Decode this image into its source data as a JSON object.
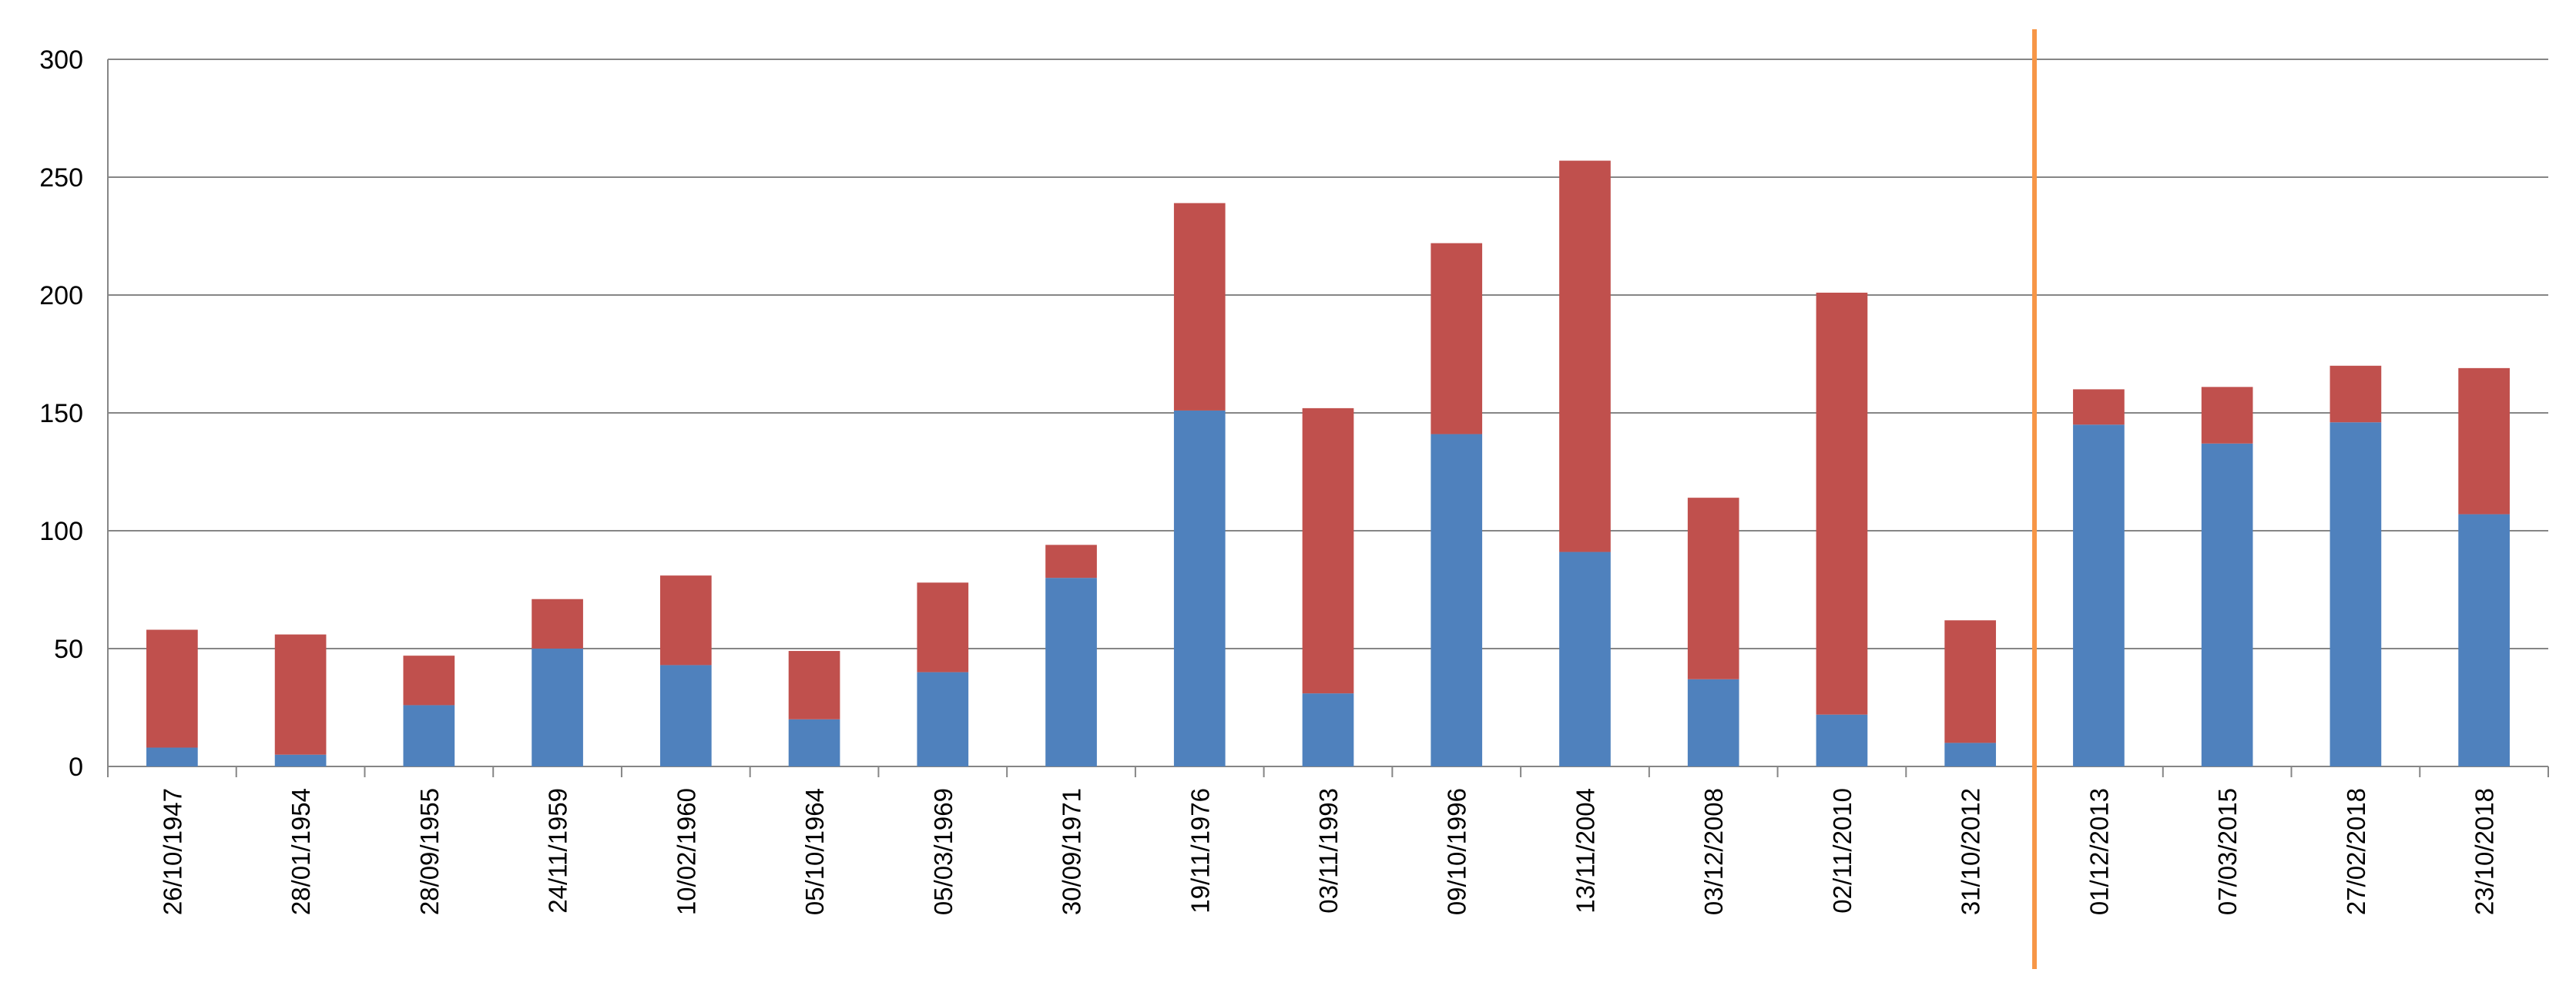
{
  "chart_data": {
    "type": "bar",
    "stacked": true,
    "title": "",
    "xlabel": "",
    "ylabel": "",
    "ylim": [
      0,
      300
    ],
    "yticks": [
      0,
      50,
      100,
      150,
      200,
      250,
      300
    ],
    "grid": true,
    "legend": "none",
    "categories": [
      "26/10/1947",
      "28/01/1954",
      "28/09/1955",
      "24/11/1959",
      "10/02/1960",
      "05/10/1964",
      "05/03/1969",
      "30/09/1971",
      "19/11/1976",
      "03/11/1993",
      "09/10/1996",
      "13/11/2004",
      "03/12/2008",
      "02/11/2010",
      "31/10/2012",
      "01/12/2013",
      "07/03/2015",
      "27/02/2018",
      "23/10/2018"
    ],
    "series": [
      {
        "color": "#4F81BD",
        "values": [
          8,
          5,
          26,
          50,
          43,
          20,
          40,
          80,
          151,
          31,
          141,
          91,
          37,
          22,
          10,
          145,
          137,
          146,
          107
        ]
      },
      {
        "color": "#C0504D",
        "values": [
          50,
          51,
          21,
          21,
          38,
          29,
          38,
          14,
          88,
          121,
          81,
          166,
          77,
          179,
          52,
          15,
          24,
          24,
          62
        ]
      }
    ],
    "annotations": [
      {
        "type": "vertical-line",
        "between": [
          "31/10/2012",
          "01/12/2013"
        ],
        "color": "#F79646"
      }
    ]
  }
}
